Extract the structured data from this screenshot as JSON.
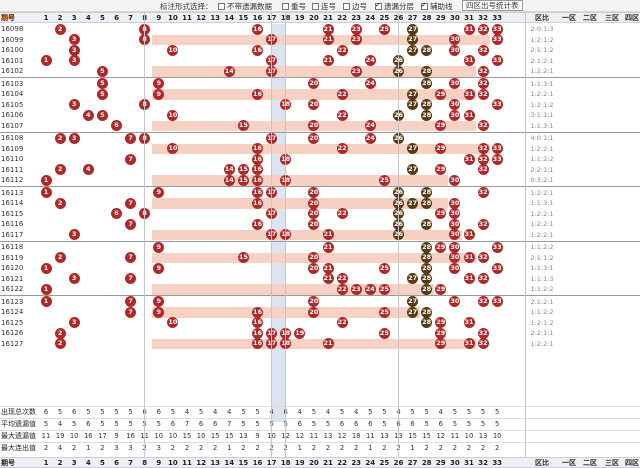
{
  "toolbar": {
    "label": "标注形式选择：",
    "options": [
      {
        "label": "不带遗漏数据",
        "checked": false
      },
      {
        "label": "重号",
        "checked": false
      },
      {
        "label": "连号",
        "checked": false
      },
      {
        "label": "边号",
        "checked": false
      },
      {
        "label": "遗漏分层",
        "checked": true
      },
      {
        "label": "辅助线",
        "checked": true
      }
    ],
    "stat_button": "四区出号统计表"
  },
  "header": {
    "issue_label": "期号",
    "sort_label": "排序",
    "numbers": [
      "1",
      "2",
      "3",
      "4",
      "5",
      "6",
      "7",
      "8",
      "9",
      "10",
      "11",
      "12",
      "13",
      "14",
      "15",
      "16",
      "17",
      "18",
      "19",
      "20",
      "21",
      "22",
      "23",
      "24",
      "25",
      "26",
      "27",
      "28",
      "29",
      "30",
      "31",
      "32",
      "33"
    ],
    "zone_labels": [
      "区比",
      "一区",
      "二区",
      "三区",
      "四区"
    ]
  },
  "rows": [
    {
      "issue": "16098",
      "balls": [
        2,
        8,
        16,
        21,
        23,
        25,
        27,
        31,
        32,
        33
      ],
      "zone": "2:0:1:3"
    },
    {
      "issue": "16099",
      "balls": [
        3,
        8,
        17,
        21,
        23,
        27,
        30,
        33
      ],
      "zone": "1:2:1:2"
    },
    {
      "issue": "16100",
      "balls": [
        3,
        10,
        16,
        22,
        27,
        28,
        30,
        32
      ],
      "zone": "2:1:1:2"
    },
    {
      "issue": "16101",
      "balls": [
        1,
        3,
        17,
        21,
        24,
        26,
        31,
        33
      ],
      "zone": "2:1:2:1"
    },
    {
      "issue": "16102",
      "balls": [
        5,
        14,
        17,
        23,
        26,
        28,
        32
      ],
      "zone": "1:2:2:1"
    },
    {
      "issue": "16103",
      "balls": [
        5,
        9,
        20,
        24,
        28,
        30,
        32
      ],
      "zone": "1:1:3:1"
    },
    {
      "issue": "16104",
      "balls": [
        5,
        9,
        16,
        22,
        27,
        29,
        31,
        32
      ],
      "zone": "1:2:2:1"
    },
    {
      "issue": "16105",
      "balls": [
        3,
        8,
        18,
        20,
        27,
        28,
        30,
        33
      ],
      "zone": "1:2:1:2"
    },
    {
      "issue": "16106",
      "balls": [
        4,
        5,
        10,
        22,
        26,
        28,
        30,
        31
      ],
      "zone": "3:1:1:1"
    },
    {
      "issue": "16107",
      "balls": [
        6,
        15,
        20,
        24,
        29,
        32
      ],
      "zone": "1:1:3:1"
    },
    {
      "issue": "16108",
      "balls": [
        2,
        3,
        7,
        8,
        17,
        20,
        24,
        26
      ],
      "zone": "4:0:1:1"
    },
    {
      "issue": "16109",
      "balls": [
        10,
        16,
        22,
        27,
        29,
        32,
        33
      ],
      "zone": "1:2:2:1"
    },
    {
      "issue": "16110",
      "balls": [
        7,
        16,
        18,
        31,
        32,
        33
      ],
      "zone": "1:1:2:2"
    },
    {
      "issue": "16111",
      "balls": [
        2,
        4,
        14,
        15,
        16,
        27,
        29,
        32
      ],
      "zone": "2:2:1:1"
    },
    {
      "issue": "16112",
      "balls": [
        1,
        14,
        15,
        16,
        18,
        25,
        30
      ],
      "zone": "0:3:2:1"
    },
    {
      "issue": "16113",
      "balls": [
        1,
        9,
        16,
        17,
        20,
        26,
        28,
        32
      ],
      "zone": "1:2:2:1"
    },
    {
      "issue": "16114",
      "balls": [
        2,
        7,
        16,
        20,
        26,
        27,
        28,
        30
      ],
      "zone": "1:1:3:1"
    },
    {
      "issue": "16115",
      "balls": [
        6,
        8,
        17,
        20,
        22,
        26,
        29,
        30
      ],
      "zone": "1:2:2:1"
    },
    {
      "issue": "16116",
      "balls": [
        7,
        16,
        20,
        26,
        28,
        30,
        32
      ],
      "zone": "1:2:2:1"
    },
    {
      "issue": "16117",
      "balls": [
        3,
        17,
        18,
        21,
        26,
        30,
        31
      ],
      "zone": "1:2:2:1"
    },
    {
      "issue": "16118",
      "balls": [
        9,
        21,
        28,
        29,
        30,
        33
      ],
      "zone": "1:1:2:2"
    },
    {
      "issue": "16119",
      "balls": [
        2,
        7,
        15,
        20,
        28,
        30,
        31,
        32
      ],
      "zone": "2:1:1:2"
    },
    {
      "issue": "16120",
      "balls": [
        1,
        9,
        20,
        21,
        25,
        28,
        30,
        33
      ],
      "zone": "1:1:3:1"
    },
    {
      "issue": "16121",
      "balls": [
        3,
        7,
        21,
        22,
        27,
        28,
        31,
        32
      ],
      "zone": "1:1:1:3"
    },
    {
      "issue": "16122",
      "balls": [
        1,
        22,
        23,
        24,
        25,
        28,
        29
      ],
      "zone": "1:1:2:2"
    },
    {
      "issue": "16123",
      "balls": [
        1,
        7,
        9,
        20,
        27,
        30,
        32,
        33
      ],
      "zone": "2:1:2:1"
    },
    {
      "issue": "16124",
      "balls": [
        7,
        9,
        16,
        20,
        25,
        27,
        28
      ],
      "zone": "1:1:2:2"
    },
    {
      "issue": "16125",
      "balls": [
        3,
        10,
        16,
        22,
        28,
        29,
        31
      ],
      "zone": "1:2:1:2"
    },
    {
      "issue": "16126",
      "balls": [
        2,
        16,
        17,
        18,
        19,
        25,
        29,
        32
      ],
      "zone": "2:2:1:1"
    },
    {
      "issue": "16127",
      "balls": [
        2,
        16,
        17,
        18,
        21,
        29,
        31,
        32
      ],
      "zone": "1:2:2:1"
    }
  ],
  "stats": [
    {
      "label": "出现总次数",
      "values": [
        "6",
        "5",
        "6",
        "5",
        "5",
        "5",
        "5",
        "6",
        "6",
        "5",
        "4",
        "5",
        "4",
        "4",
        "5",
        "5",
        "4",
        "6",
        "4",
        "5",
        "4",
        "5",
        "4",
        "5",
        "5",
        "4",
        "5",
        "5",
        "4",
        "5",
        "5",
        "5",
        "5"
      ]
    },
    {
      "label": "平均遗漏值",
      "values": [
        "5",
        "4",
        "5",
        "6",
        "5",
        "5",
        "5",
        "5",
        "5",
        "6",
        "7",
        "6",
        "6",
        "7",
        "5",
        "5",
        "5",
        "5",
        "6",
        "5",
        "5",
        "6",
        "6",
        "6",
        "5",
        "6",
        "6",
        "5",
        "6",
        "5",
        "5",
        "5",
        "5"
      ]
    },
    {
      "label": "最大遗漏值",
      "values": [
        "11",
        "19",
        "10",
        "16",
        "17",
        "9",
        "16",
        "11",
        "10",
        "10",
        "15",
        "10",
        "15",
        "15",
        "13",
        "9",
        "10",
        "12",
        "12",
        "11",
        "13",
        "12",
        "18",
        "11",
        "13",
        "13",
        "15",
        "15",
        "12",
        "11",
        "10",
        "13",
        "10"
      ]
    },
    {
      "label": "最大连出值",
      "values": [
        "2",
        "4",
        "2",
        "1",
        "2",
        "3",
        "3",
        "2",
        "3",
        "2",
        "2",
        "2",
        "2",
        "1",
        "2",
        "2",
        "2",
        "2",
        "1",
        "2",
        "2",
        "2",
        "2",
        "1",
        "2",
        "2",
        "1",
        "2",
        "2",
        "2",
        "2",
        "2",
        "2"
      ]
    }
  ]
}
